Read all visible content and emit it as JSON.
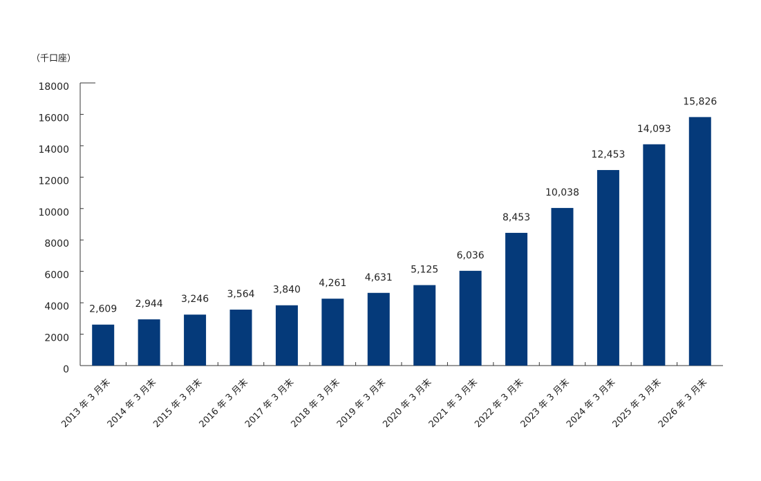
{
  "chart_data": {
    "type": "bar",
    "unit_label": "（千口座）",
    "categories": [
      "2013 年 3 月末",
      "2014 年 3 月末",
      "2015 年 3 月末",
      "2016 年 3 月末",
      "2017 年 3 月末",
      "2018 年 3 月末",
      "2019 年 3 月末",
      "2020 年 3 月末",
      "2021 年 3 月末",
      "2022 年 3 月末",
      "2023 年 3 月末",
      "2024 年 3 月末",
      "2025 年 3 月末",
      "2026 年 3 月末"
    ],
    "values": [
      2609,
      2944,
      3246,
      3564,
      3840,
      4261,
      4631,
      5125,
      6036,
      8453,
      10038,
      12453,
      14093,
      15826
    ],
    "value_labels": [
      "2,609",
      "2,944",
      "3,246",
      "3,564",
      "3,840",
      "4,261",
      "4,631",
      "5,125",
      "6,036",
      "8,453",
      "10,038",
      "12,453",
      "14,093",
      "15,826"
    ],
    "color": "#053a7a",
    "ylim": [
      0,
      18000
    ],
    "yticks": [
      0,
      2000,
      4000,
      6000,
      8000,
      10000,
      12000,
      14000,
      16000,
      18000
    ]
  }
}
